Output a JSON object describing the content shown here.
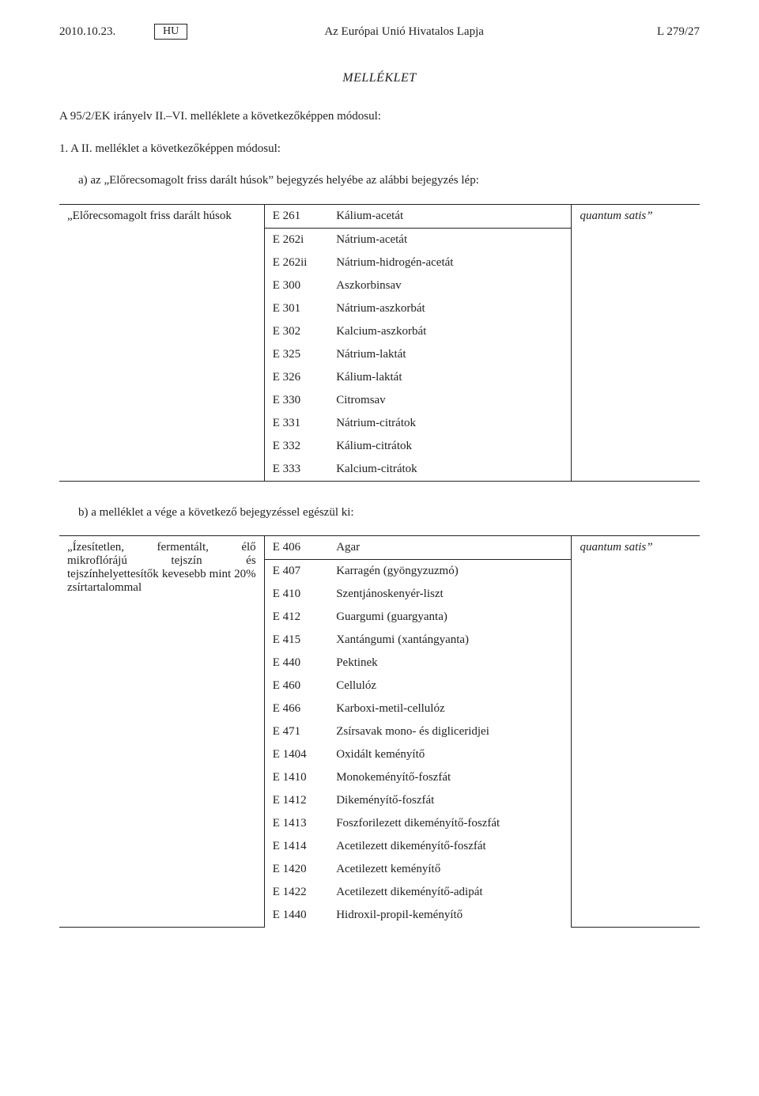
{
  "header": {
    "date": "2010.10.23.",
    "lang": "HU",
    "center": "Az Európai Unió Hivatalos Lapja",
    "right": "L 279/27"
  },
  "annex_title": "MELLÉKLET",
  "intro": "A 95/2/EK irányelv II.–VI. melléklete a következőképpen módosul:",
  "item1": "1.  A II. melléklet a következőképpen módosul:",
  "item1a": "a)  az „Előrecsomagolt friss darált húsok” bejegyzés helyébe az alábbi bejegyzés lép:",
  "table_a": {
    "category": "„Előrecsomagolt friss darált húsok",
    "limit": "quantum satis”",
    "rows": [
      {
        "code": "E 261",
        "name": "Kálium-acetát"
      },
      {
        "code": "E 262i",
        "name": "Nátrium-acetát"
      },
      {
        "code": "E 262ii",
        "name": "Nátrium-hidrogén-acetát"
      },
      {
        "code": "E 300",
        "name": "Aszkorbinsav"
      },
      {
        "code": "E 301",
        "name": "Nátrium-aszkorbát"
      },
      {
        "code": "E 302",
        "name": "Kalcium-aszkorbát"
      },
      {
        "code": "E 325",
        "name": "Nátrium-laktát"
      },
      {
        "code": "E 326",
        "name": "Kálium-laktát"
      },
      {
        "code": "E 330",
        "name": "Citromsav"
      },
      {
        "code": "E 331",
        "name": "Nátrium-citrátok"
      },
      {
        "code": "E 332",
        "name": "Kálium-citrátok"
      },
      {
        "code": "E 333",
        "name": "Kalcium-citrátok"
      }
    ]
  },
  "item1b": "b)  a melléklet a vége a következő bejegyzéssel egészül ki:",
  "table_b": {
    "category": "„Ízesítetlen, fermentált, élő mikroflórájú tejszín és tejszínhelyettesítők kevesebb mint 20% zsírtartalommal",
    "limit": "quantum satis”",
    "rows": [
      {
        "code": "E 406",
        "name": "Agar"
      },
      {
        "code": "E 407",
        "name": "Karragén (gyöngyzuzmó)"
      },
      {
        "code": "E 410",
        "name": "Szentjánoskenyér-liszt"
      },
      {
        "code": "E 412",
        "name": "Guargumi (guargyanta)"
      },
      {
        "code": "E 415",
        "name": "Xantángumi (xantángyanta)"
      },
      {
        "code": "E 440",
        "name": "Pektinek"
      },
      {
        "code": "E 460",
        "name": "Cellulóz"
      },
      {
        "code": "E 466",
        "name": "Karboxi-metil-cellulóz"
      },
      {
        "code": "E 471",
        "name": "Zsírsavak mono- és digliceridjei"
      },
      {
        "code": "E 1404",
        "name": "Oxidált keményítő"
      },
      {
        "code": "E 1410",
        "name": "Monokeményítő-foszfát"
      },
      {
        "code": "E 1412",
        "name": "Dikeményítő-foszfát"
      },
      {
        "code": "E 1413",
        "name": "Foszforilezett dikeményítő-foszfát"
      },
      {
        "code": "E 1414",
        "name": "Acetilezett dikeményítő-foszfát"
      },
      {
        "code": "E 1420",
        "name": "Acetilezett keményítő"
      },
      {
        "code": "E 1422",
        "name": "Acetilezett dikeményítő-adipát"
      },
      {
        "code": "E 1440",
        "name": "Hidroxil-propil-keményítő"
      }
    ]
  }
}
